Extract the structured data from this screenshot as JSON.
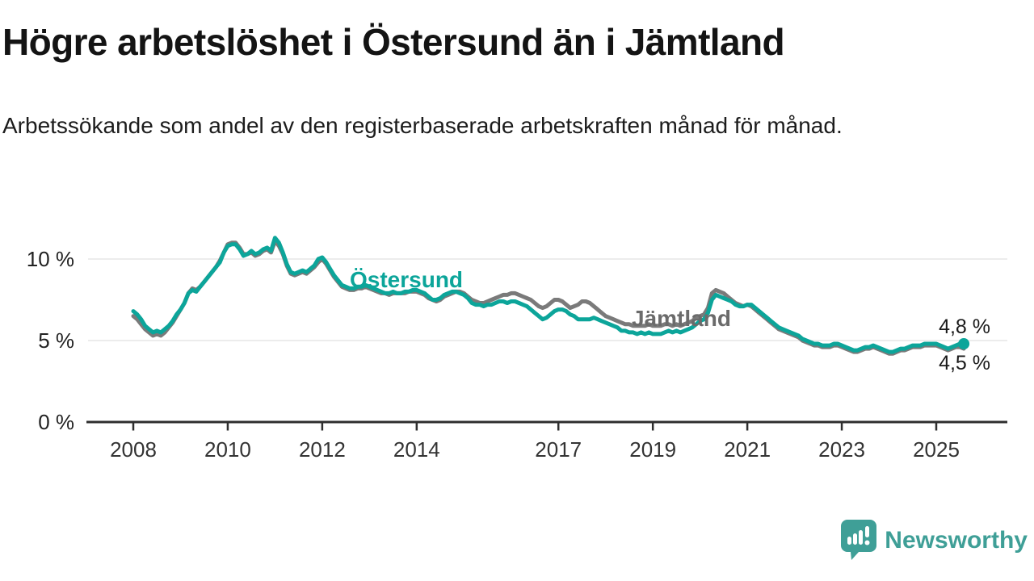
{
  "header": {
    "title": "Högre arbetslöshet i Östersund än i Jämtland",
    "subtitle": "Arbetssökande som andel av den registerbaserade arbetskraften månad för månad."
  },
  "footer": {
    "brand": "Newsworthy",
    "logo_color": "#3f9f97"
  },
  "colors": {
    "accent_teal": "#0ca59a",
    "line_gray": "#7a7a7a",
    "label_gray": "#6b6b6b",
    "axis": "#2e2e2e",
    "gridline": "#d9d9d9",
    "text": "#1a1a1a"
  },
  "chart_data": {
    "type": "line",
    "title": "Högre arbetslöshet i Östersund än i Jämtland",
    "subtitle": "Arbetssökande som andel av den registerbaserade arbetskraften månad för månad.",
    "unit": "%",
    "x_start": "2008-01",
    "x_end": "2025-08",
    "x_step": "month",
    "ylim": [
      0,
      12
    ],
    "grid": "horizontal-only",
    "legend_position": "inline-labels",
    "yticks": [
      {
        "value": 10,
        "label": "10 %"
      },
      {
        "value": 5,
        "label": "5 %"
      },
      {
        "value": 0,
        "label": "0 %"
      }
    ],
    "xticks": [
      {
        "year": 2008,
        "label": "2008"
      },
      {
        "year": 2010,
        "label": "2010"
      },
      {
        "year": 2012,
        "label": "2012"
      },
      {
        "year": 2014,
        "label": "2014"
      },
      {
        "year": 2017,
        "label": "2017"
      },
      {
        "year": 2019,
        "label": "2019"
      },
      {
        "year": 2021,
        "label": "2021"
      },
      {
        "year": 2023,
        "label": "2023"
      },
      {
        "year": 2025,
        "label": "2025"
      }
    ],
    "series": [
      {
        "name": "Östersund",
        "color": "#0ca59a",
        "label_color": "#0ca59a",
        "end_label": "4,8 %",
        "end_value": 4.8,
        "end_dot": true,
        "values": [
          6.8,
          6.6,
          6.3,
          5.9,
          5.7,
          5.5,
          5.6,
          5.5,
          5.7,
          5.9,
          6.2,
          6.6,
          6.9,
          7.3,
          7.9,
          8.1,
          8.0,
          8.3,
          8.6,
          8.9,
          9.2,
          9.5,
          9.8,
          10.4,
          10.8,
          10.9,
          10.9,
          10.6,
          10.2,
          10.3,
          10.5,
          10.3,
          10.4,
          10.6,
          10.7,
          10.5,
          11.3,
          11.0,
          10.4,
          9.7,
          9.2,
          9.1,
          9.2,
          9.3,
          9.2,
          9.4,
          9.6,
          10.0,
          10.1,
          9.8,
          9.4,
          9.0,
          8.7,
          8.4,
          8.3,
          8.2,
          8.2,
          8.3,
          8.3,
          8.4,
          8.3,
          8.2,
          8.1,
          8.0,
          7.9,
          7.9,
          8.0,
          7.9,
          7.9,
          8.0,
          8.0,
          8.1,
          8.1,
          8.0,
          7.9,
          7.7,
          7.5,
          7.5,
          7.6,
          7.8,
          7.9,
          8.0,
          8.0,
          7.9,
          7.8,
          7.6,
          7.3,
          7.2,
          7.2,
          7.1,
          7.2,
          7.2,
          7.3,
          7.4,
          7.4,
          7.3,
          7.4,
          7.4,
          7.3,
          7.2,
          7.1,
          6.9,
          6.7,
          6.5,
          6.3,
          6.4,
          6.6,
          6.8,
          6.9,
          6.9,
          6.8,
          6.6,
          6.5,
          6.3,
          6.3,
          6.3,
          6.3,
          6.4,
          6.3,
          6.2,
          6.1,
          6.0,
          5.9,
          5.8,
          5.6,
          5.6,
          5.5,
          5.5,
          5.4,
          5.5,
          5.4,
          5.5,
          5.4,
          5.4,
          5.4,
          5.5,
          5.6,
          5.5,
          5.6,
          5.5,
          5.6,
          5.7,
          5.8,
          6.0,
          6.2,
          6.3,
          6.7,
          7.5,
          7.8,
          7.7,
          7.6,
          7.5,
          7.4,
          7.2,
          7.1,
          7.1,
          7.2,
          7.2,
          7.0,
          6.8,
          6.6,
          6.4,
          6.2,
          6.0,
          5.8,
          5.7,
          5.6,
          5.5,
          5.4,
          5.3,
          5.1,
          5.0,
          4.9,
          4.8,
          4.8,
          4.7,
          4.7,
          4.7,
          4.8,
          4.8,
          4.7,
          4.6,
          4.5,
          4.4,
          4.4,
          4.5,
          4.6,
          4.6,
          4.7,
          4.6,
          4.5,
          4.4,
          4.3,
          4.3,
          4.4,
          4.5,
          4.5,
          4.6,
          4.7,
          4.7,
          4.7,
          4.8,
          4.8,
          4.8,
          4.8,
          4.7,
          4.6,
          4.5,
          4.6,
          4.7,
          4.8,
          4.8
        ]
      },
      {
        "name": "Jämtland",
        "color": "#7a7a7a",
        "label_color": "#6b6b6b",
        "end_label": "4,5 %",
        "end_value": 4.5,
        "end_dot": false,
        "values": [
          6.5,
          6.3,
          6.0,
          5.7,
          5.5,
          5.3,
          5.4,
          5.3,
          5.5,
          5.8,
          6.1,
          6.5,
          6.9,
          7.3,
          7.9,
          8.2,
          8.1,
          8.3,
          8.6,
          8.9,
          9.2,
          9.5,
          9.9,
          10.4,
          10.9,
          11.0,
          11.0,
          10.7,
          10.3,
          10.3,
          10.4,
          10.2,
          10.3,
          10.5,
          10.6,
          10.4,
          11.1,
          10.8,
          10.3,
          9.6,
          9.1,
          9.0,
          9.1,
          9.2,
          9.1,
          9.3,
          9.5,
          9.8,
          10.0,
          9.7,
          9.3,
          8.9,
          8.6,
          8.3,
          8.2,
          8.1,
          8.1,
          8.2,
          8.2,
          8.3,
          8.2,
          8.1,
          8.0,
          7.9,
          7.9,
          7.8,
          7.9,
          7.9,
          7.9,
          7.9,
          8.0,
          8.0,
          8.0,
          7.9,
          7.8,
          7.6,
          7.5,
          7.4,
          7.5,
          7.7,
          7.8,
          7.9,
          8.0,
          8.0,
          7.9,
          7.7,
          7.5,
          7.4,
          7.3,
          7.3,
          7.4,
          7.5,
          7.6,
          7.7,
          7.8,
          7.8,
          7.9,
          7.9,
          7.8,
          7.7,
          7.6,
          7.5,
          7.3,
          7.1,
          7.0,
          7.1,
          7.3,
          7.5,
          7.5,
          7.4,
          7.2,
          7.0,
          7.1,
          7.2,
          7.4,
          7.4,
          7.3,
          7.1,
          6.9,
          6.7,
          6.5,
          6.4,
          6.3,
          6.2,
          6.1,
          6.0,
          6.0,
          5.9,
          5.9,
          5.9,
          5.9,
          6.0,
          5.9,
          5.9,
          5.9,
          6.0,
          6.0,
          5.9,
          6.0,
          5.9,
          6.0,
          6.1,
          6.2,
          6.4,
          6.5,
          6.6,
          7.0,
          7.9,
          8.1,
          8.0,
          7.9,
          7.7,
          7.5,
          7.3,
          7.2,
          7.1,
          7.2,
          7.1,
          6.9,
          6.7,
          6.5,
          6.3,
          6.1,
          5.9,
          5.7,
          5.6,
          5.5,
          5.4,
          5.3,
          5.2,
          5.0,
          4.9,
          4.8,
          4.7,
          4.7,
          4.6,
          4.6,
          4.6,
          4.7,
          4.7,
          4.6,
          4.5,
          4.4,
          4.3,
          4.3,
          4.4,
          4.5,
          4.5,
          4.6,
          4.5,
          4.4,
          4.3,
          4.2,
          4.2,
          4.3,
          4.4,
          4.4,
          4.5,
          4.6,
          4.6,
          4.6,
          4.7,
          4.7,
          4.7,
          4.7,
          4.6,
          4.5,
          4.4,
          4.5,
          4.6,
          4.6,
          4.5
        ]
      }
    ]
  }
}
